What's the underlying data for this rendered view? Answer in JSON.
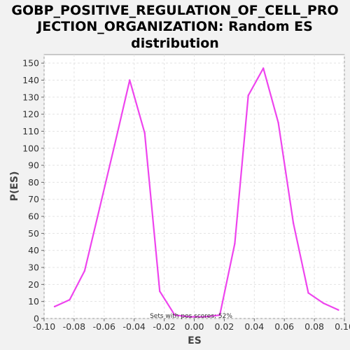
{
  "chart_data": {
    "type": "line",
    "title_lines": [
      "GOBP_POSITIVE_REGULATION_OF_CELL_PRO",
      "JECTION_ORGANIZATION: Random ES",
      "distribution"
    ],
    "xlabel": "ES",
    "ylabel": "P(ES)",
    "xlim": [
      -0.1,
      0.1
    ],
    "ylim": [
      0,
      155
    ],
    "x_ticks": [
      -0.1,
      -0.08,
      -0.06,
      -0.04,
      -0.02,
      0.0,
      0.02,
      0.04,
      0.06,
      0.08,
      0.1
    ],
    "x_tick_labels": [
      "-0.10",
      "-0.08",
      "-0.06",
      "-0.04",
      "-0.02",
      "0.00",
      "0.02",
      "0.04",
      "0.06",
      "0.08",
      "0.10"
    ],
    "y_ticks": [
      0,
      10,
      20,
      30,
      40,
      50,
      60,
      70,
      80,
      90,
      100,
      110,
      120,
      130,
      140,
      150
    ],
    "y_tick_labels": [
      "0",
      "10",
      "20",
      "30",
      "40",
      "50",
      "60",
      "70",
      "80",
      "90",
      "100",
      "110",
      "120",
      "130",
      "140",
      "150"
    ],
    "grid": true,
    "annotation": "Sets with pos scores: 52%",
    "series": [
      {
        "color": "#ee44ee",
        "x": [
          -0.093,
          -0.083,
          -0.073,
          -0.063,
          -0.053,
          -0.043,
          -0.033,
          -0.023,
          -0.013,
          -0.003,
          0.007,
          0.017,
          0.027,
          0.036,
          0.046,
          0.056,
          0.066,
          0.076,
          0.086,
          0.096
        ],
        "y": [
          7,
          11,
          28,
          65,
          102,
          140,
          109,
          16,
          2,
          1,
          1,
          2,
          44,
          131,
          147,
          115,
          56,
          15,
          9,
          5
        ]
      }
    ]
  }
}
